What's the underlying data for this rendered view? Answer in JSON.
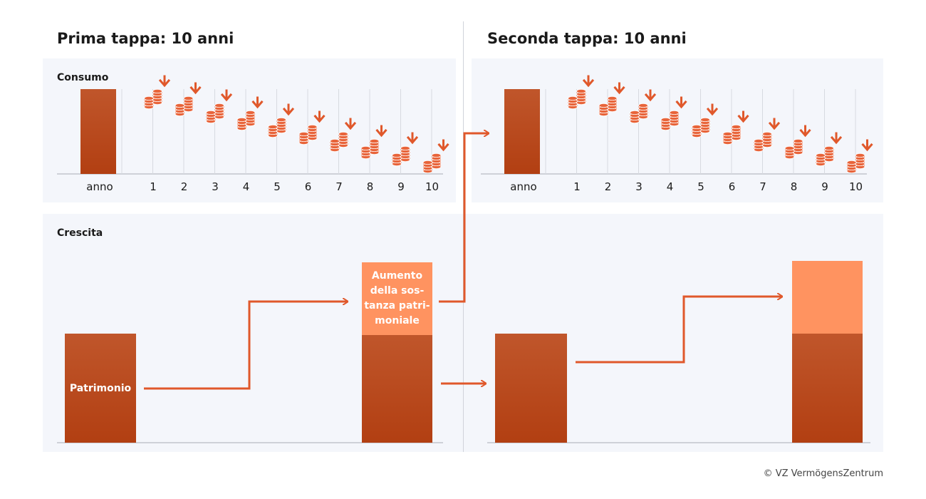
{
  "stages": [
    {
      "title": "Prima tappa: 10 anni"
    },
    {
      "title": "Seconda tappa: 10 anni"
    }
  ],
  "sections": {
    "consumption": "Consumo",
    "growth": "Crescita"
  },
  "consumption_axis": {
    "first_label": "anno",
    "years": [
      "1",
      "2",
      "3",
      "4",
      "5",
      "6",
      "7",
      "8",
      "9",
      "10"
    ]
  },
  "growth_labels": {
    "assets": "Patrimonio",
    "increase_lines": [
      "Aumento",
      "della sos-",
      "tanza patri-",
      "moniale"
    ]
  },
  "colors": {
    "bar_dark_top": "#c0562b",
    "bar_dark_bottom": "#b23f12",
    "bar_light": "#ff9360",
    "arrow": "#e0582b",
    "coin": "#e8643a",
    "panel": "#f4f6fb"
  },
  "icons": {
    "coin": "coin-stack-icon",
    "down": "arrow-down-icon"
  },
  "copyright": "© VZ VermögensZentrum"
}
